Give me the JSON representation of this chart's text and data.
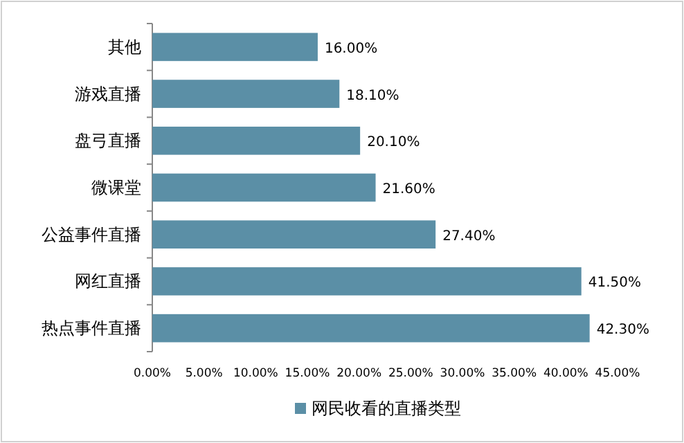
{
  "chart_data": {
    "type": "bar",
    "orientation": "horizontal",
    "categories": [
      "其他",
      "游戏直播",
      "盘弓直播",
      "微课堂",
      "公益事件直播",
      "网红直播",
      "热点事件直播"
    ],
    "series": [
      {
        "name": "网民收看的直播类型",
        "color": "#5b8fa6",
        "values": [
          16.0,
          18.1,
          20.1,
          21.6,
          27.4,
          41.5,
          42.3
        ],
        "value_labels": [
          "16.00%",
          "18.10%",
          "20.10%",
          "21.60%",
          "27.40%",
          "41.50%",
          "42.30%"
        ]
      }
    ],
    "xlim": [
      0,
      45
    ],
    "xticks": [
      {
        "value": 0,
        "label": "0.00%"
      },
      {
        "value": 5,
        "label": "5.00%"
      },
      {
        "value": 10,
        "label": "10.00%"
      },
      {
        "value": 15,
        "label": "15.00%"
      },
      {
        "value": 20,
        "label": "20.00%"
      },
      {
        "value": 25,
        "label": "25.00%"
      },
      {
        "value": 30,
        "label": "30.00%"
      },
      {
        "value": 35,
        "label": "35.00%"
      },
      {
        "value": 40,
        "label": "40.00%"
      },
      {
        "value": 45,
        "label": "45.00%"
      }
    ],
    "legend": "bottom"
  }
}
